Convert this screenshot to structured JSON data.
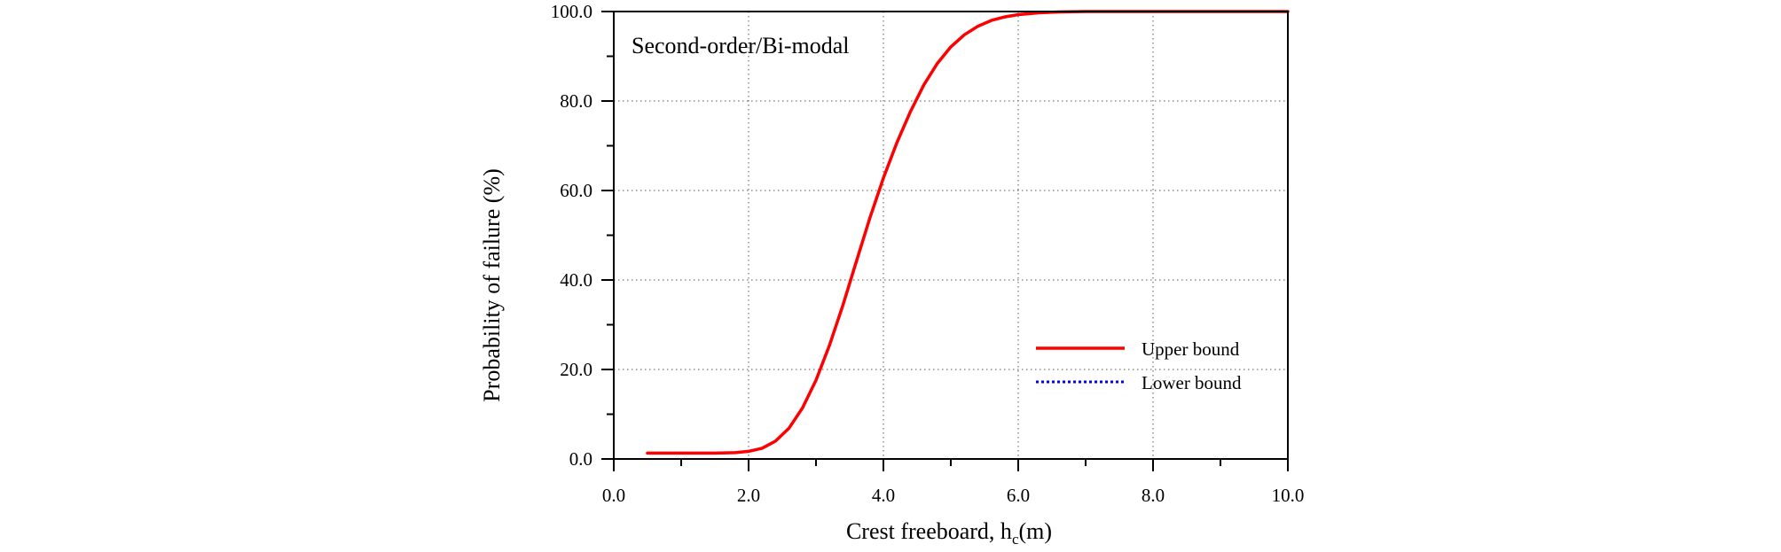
{
  "chart_data": {
    "type": "line",
    "annotation": "Second-order/Bi-modal",
    "xlabel": "Crest freeboard,  h",
    "xlabel_subscript": "c",
    "xlabel_unit": "(m)",
    "ylabel": "Probability of failure (%)",
    "xlim": [
      0.0,
      10.0
    ],
    "ylim": [
      0.0,
      100.0
    ],
    "x_ticks": [
      "0.0",
      "2.0",
      "4.0",
      "6.0",
      "8.0",
      "10.0"
    ],
    "y_ticks": [
      "0.0",
      "20.0",
      "40.0",
      "60.0",
      "80.0",
      "100.0"
    ],
    "grid": "dotted",
    "legend_position": "lower-right",
    "series": [
      {
        "name": "Upper bound",
        "color": "#ff0000",
        "style": "solid",
        "x": [
          0.5,
          1.0,
          1.5,
          1.8,
          2.0,
          2.2,
          2.4,
          2.6,
          2.8,
          3.0,
          3.2,
          3.4,
          3.6,
          3.8,
          4.0,
          4.2,
          4.4,
          4.6,
          4.8,
          5.0,
          5.2,
          5.4,
          5.6,
          5.8,
          6.0,
          6.3,
          6.6,
          7.0,
          7.5,
          8.0,
          8.5,
          9.0,
          9.5,
          10.0
        ],
        "y": [
          1.3,
          1.3,
          1.3,
          1.4,
          1.7,
          2.4,
          4.0,
          6.9,
          11.4,
          17.6,
          25.4,
          34.4,
          44.2,
          53.9,
          62.8,
          70.7,
          77.6,
          83.6,
          88.4,
          92.1,
          94.8,
          96.7,
          98.0,
          98.8,
          99.3,
          99.7,
          99.9,
          100.0,
          100.0,
          100.0,
          100.0,
          100.0,
          100.0,
          100.0
        ]
      },
      {
        "name": "Lower bound",
        "color": "#0000ff",
        "style": "dotted",
        "x": [
          0.5,
          1.0,
          1.5,
          1.8,
          2.0,
          2.2,
          2.4,
          2.6,
          2.8,
          3.0,
          3.2,
          3.4,
          3.6,
          3.8,
          4.0,
          4.2,
          4.4,
          4.6,
          4.8,
          5.0,
          5.2,
          5.4,
          5.6,
          5.8,
          6.0,
          6.3,
          6.6,
          7.0,
          7.5,
          8.0,
          8.5,
          9.0,
          9.5,
          10.0
        ],
        "y": [
          1.3,
          1.3,
          1.3,
          1.4,
          1.7,
          2.4,
          4.0,
          6.9,
          11.4,
          17.6,
          25.4,
          34.4,
          44.2,
          53.9,
          62.8,
          70.7,
          77.6,
          83.6,
          88.4,
          92.1,
          94.8,
          96.7,
          98.0,
          98.8,
          99.3,
          99.7,
          99.9,
          100.0,
          100.0,
          100.0,
          100.0,
          100.0,
          100.0,
          100.0
        ]
      }
    ]
  }
}
